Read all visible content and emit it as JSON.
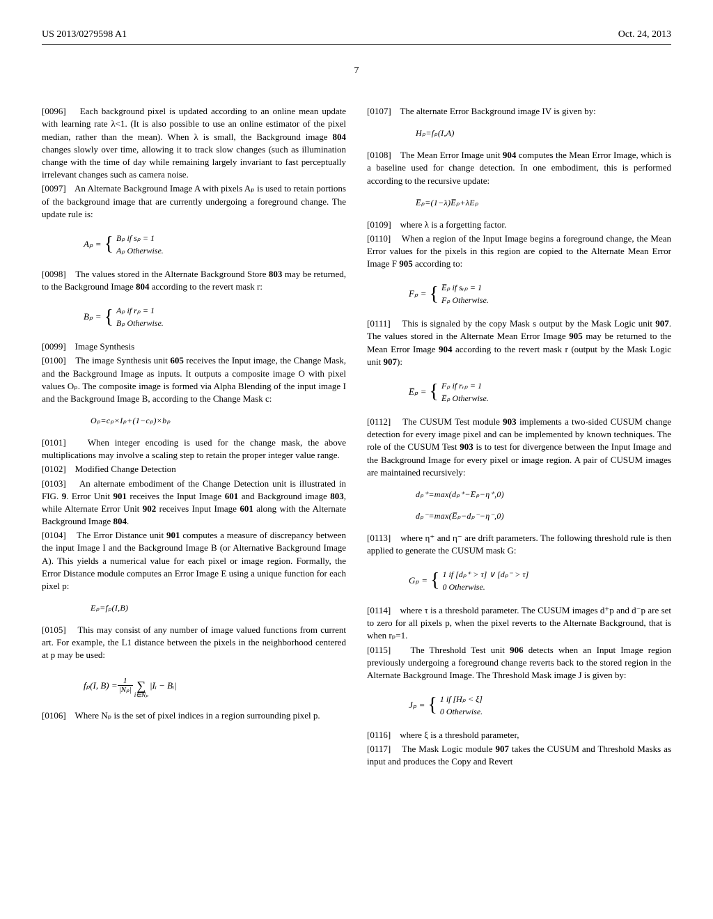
{
  "header": {
    "pub_id": "US 2013/0279598 A1",
    "pub_date": "Oct. 24, 2013"
  },
  "page_number": "7",
  "left_col": {
    "p0096": {
      "num": "[0096]",
      "text": "Each background pixel is updated according to an online mean update with learning rate λ<1. (It is also possible to use an online estimator of the pixel median, rather than the mean). When λ is small, the Background image ",
      "ref": "804",
      "text2": " changes slowly over time, allowing it to track slow changes (such as illumination change with the time of day while remaining largely invariant to fast perceptually irrelevant changes such as camera noise."
    },
    "p0097": {
      "num": "[0097]",
      "text": "An Alternate Background Image A with pixels Aₚ is used to retain portions of the background image that are currently undergoing a foreground change. The update rule is:"
    },
    "eq_Ap": {
      "lhs": "Aₚ =",
      "case1": "Bₚ   if  sₚ = 1",
      "case2": "Aₚ   Otherwise."
    },
    "p0098": {
      "num": "[0098]",
      "text": "The values stored in the Alternate Background Store ",
      "ref1": "803",
      "text2": " may be returned, to the Background Image ",
      "ref2": "804",
      "text3": " according to the revert mask r:"
    },
    "eq_Bp": {
      "lhs": "Bₚ =",
      "case1": "Aₚ   if  rₚ = 1",
      "case2": "Bₚ   Otherwise."
    },
    "p0099": {
      "num": "[0099]",
      "text": "Image Synthesis"
    },
    "p0100": {
      "num": "[0100]",
      "text": "The image Synthesis unit ",
      "ref": "605",
      "text2": " receives the Input image, the Change Mask, and the Background Image as inputs. It outputs a composite image O with pixel values Oₚ. The composite image is formed via Alpha Blending of the input image I and the Background Image B, according to the Change Mask c:"
    },
    "eq_Op": "Oₚ=cₚ×Iₚ+(1−cₚ)×bₚ",
    "p0101": {
      "num": "[0101]",
      "text": "When integer encoding is used for the change mask, the above multiplications may involve a scaling step to retain the proper integer value range."
    },
    "p0102": {
      "num": "[0102]",
      "text": "Modified Change Detection"
    },
    "p0103": {
      "num": "[0103]",
      "text": "An alternate embodiment of the Change Detection unit is illustrated in FIG. ",
      "ref_fig": "9",
      "text2": ". Error Unit ",
      "ref1": "901",
      "text3": " receives the Input Image ",
      "ref2": "601",
      "text4": " and Background image ",
      "ref3": "803",
      "text5": ", while Alternate Error Unit ",
      "ref4": "902",
      "text6": " receives Input Image ",
      "ref5": "601",
      "text7": " along with the Alternate Background Image ",
      "ref6": "804",
      "text8": "."
    },
    "p0104": {
      "num": "[0104]",
      "text": "The Error Distance unit ",
      "ref": "901",
      "text2": " computes a measure of discrepancy between the input Image I and the Background Image B (or Alternative Background Image A). This yields a numerical value for each pixel or image region. Formally, the Error Distance module computes an Error Image E using a unique function for each pixel p:"
    },
    "eq_Ep": "Eₚ=fₚ(I,B)",
    "p0105": {
      "num": "[0105]",
      "text": "This may consist of any number of image valued functions from current art. For example, the L1 distance between the pixels in the neighborhood centered at p may be used:"
    },
    "eq_fp": {
      "lhs": "fₚ(I, B) = ",
      "frac_num": "1",
      "frac_den": "|Nₚ|",
      "sum_idx": "i∈Nₚ",
      "body": "|Iᵢ − Bᵢ|"
    },
    "p0106": {
      "num": "[0106]",
      "text": "Where Nₚ is the set of pixel indices in a region surrounding pixel p."
    }
  },
  "right_col": {
    "p0107": {
      "num": "[0107]",
      "text": "The alternate Error Background image IV is given by:"
    },
    "eq_Hp": "Hₚ=fₚ(I,A)",
    "p0108": {
      "num": "[0108]",
      "text": "The Mean Error Image unit ",
      "ref": "904",
      "text2": " computes the Mean Error Image, which is a baseline used for change detection. In one embodiment, this is performed according to the recursive update:"
    },
    "eq_Ebar": "E̅ₚ=(1−λ)E̅ₚ+λEₚ",
    "p0109": {
      "num": "[0109]",
      "text": "where λ is a forgetting factor."
    },
    "p0110": {
      "num": "[0110]",
      "text": "When a region of the Input Image begins a foreground change, the Mean Error values for the pixels in this region are copied to the Alternate Mean Error Image F ",
      "ref": "905",
      "text2": " according to:"
    },
    "eq_Fp": {
      "lhs": "Fₚ =",
      "case1": "E̅ₚ   if  sᵣₚ = 1",
      "case2": "Fₚ   Otherwise."
    },
    "p0111": {
      "num": "[0111]",
      "text": "This is signaled by the copy Mask s output by the Mask Logic unit ",
      "ref1": "907",
      "text2": ". The values stored in the Alternate Mean Error Image ",
      "ref2": "905",
      "text3": " may be returned to the Mean Error Image ",
      "ref3": "904",
      "text4": " according to the revert mask r (output by the Mask Logic unit ",
      "ref4": "907",
      "text5": "):"
    },
    "eq_Ebar2": {
      "lhs": "E̅ₚ =",
      "case1": "Fₚ   if  rᵣₚ = 1",
      "case2": "E̅ₚ   Otherwise."
    },
    "p0112": {
      "num": "[0112]",
      "text": "The CUSUM Test module ",
      "ref1": "903",
      "text2": " implements a two-sided CUSUM change detection for every image pixel and can be implemented by known techniques. The role of the CUSUM Test ",
      "ref2": "903",
      "text3": " is to test for divergence between the Input Image and the Background Image for every pixel or image region. A pair of CUSUM images are maintained recursively:"
    },
    "eq_dplus": "dₚ⁺=max(dₚ⁺−E̅ₚ−η⁺,0)",
    "eq_dminus": "dₚ⁻=max(E̅ₚ−dₚ⁻−η⁻,0)",
    "p0113": {
      "num": "[0113]",
      "text": "where η⁺ and η⁻ are drift parameters. The following threshold rule is then applied to generate the CUSUM mask G:"
    },
    "eq_Gp": {
      "lhs": "Gₚ =",
      "case1": "1   if  [dₚ⁺ > τ] ∨ [dₚ⁻ > τ]",
      "case2": "0           Otherwise."
    },
    "p0114": {
      "num": "[0114]",
      "text": "where τ is a threshold parameter. The CUSUM images d⁺p and d⁻p are set to zero for all pixels p, when the pixel reverts to the Alternate Background, that is when rₚ=1."
    },
    "p0115": {
      "num": "[0115]",
      "text": "The Threshold Test unit ",
      "ref": "906",
      "text2": " detects when an Input Image region previously undergoing a foreground change reverts back to the stored region in the Alternate Background Image. The Threshold Mask image J is given by:"
    },
    "eq_Jp": {
      "lhs": "Jₚ =",
      "case1": "1   if  [Hₚ < ξ]",
      "case2": "0   Otherwise."
    },
    "p0116": {
      "num": "[0116]",
      "text": "where ξ is a threshold parameter,"
    },
    "p0117": {
      "num": "[0117]",
      "text": "The Mask Logic module ",
      "ref": "907",
      "text2": " takes the CUSUM and Threshold Masks as input and produces the Copy and Revert"
    }
  }
}
